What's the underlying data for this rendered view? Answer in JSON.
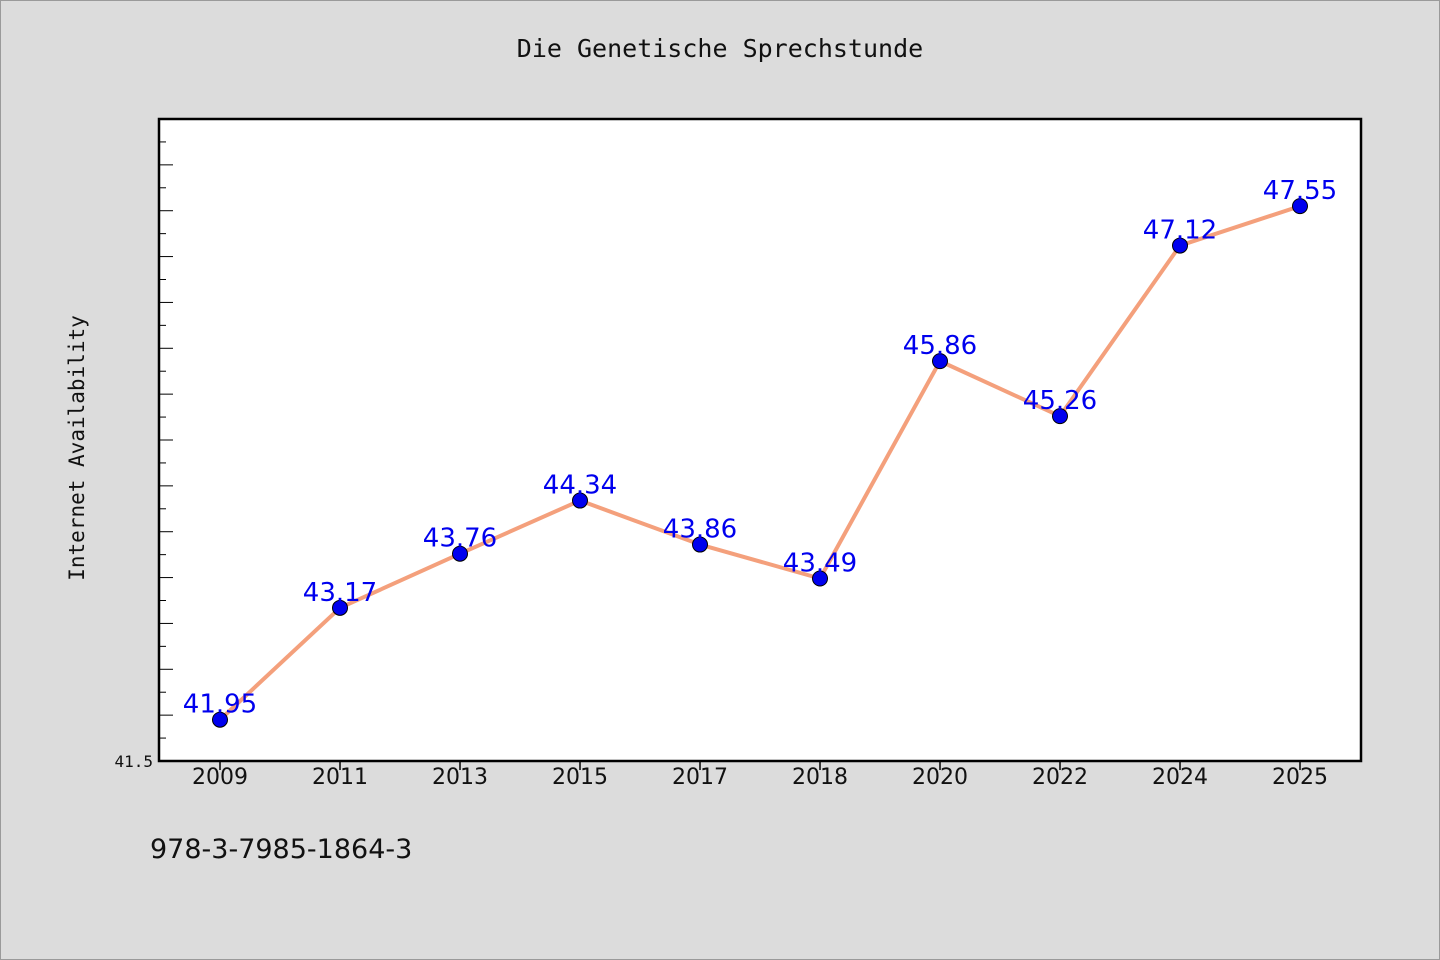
{
  "chart_data": {
    "type": "line",
    "title": "Die Genetische Sprechstunde",
    "xlabel": "",
    "ylabel": "Internet Availability",
    "categories": [
      "2009",
      "2011",
      "2013",
      "2015",
      "2017",
      "2018",
      "2020",
      "2022",
      "2024",
      "2025"
    ],
    "series": [
      {
        "values": [
          41.95,
          43.17,
          43.76,
          44.34,
          43.86,
          43.49,
          45.86,
          45.26,
          47.12,
          47.55
        ],
        "labels": [
          "41.95",
          "43.17",
          "43.76",
          "44.34",
          "43.86",
          "43.49",
          "45.86",
          "45.26",
          "47.12",
          "47.55"
        ]
      }
    ],
    "ylim": [
      41.5,
      48.5
    ],
    "yticks_labeled": [
      "41.5"
    ],
    "grid": false,
    "colors": {
      "line": "#f4a07c",
      "marker": "#0000ee",
      "data_label": "#0000ee",
      "background": "#dcdcdc",
      "plot_background": "#ffffff"
    }
  },
  "footer": {
    "isbn": "978-3-7985-1864-3"
  }
}
